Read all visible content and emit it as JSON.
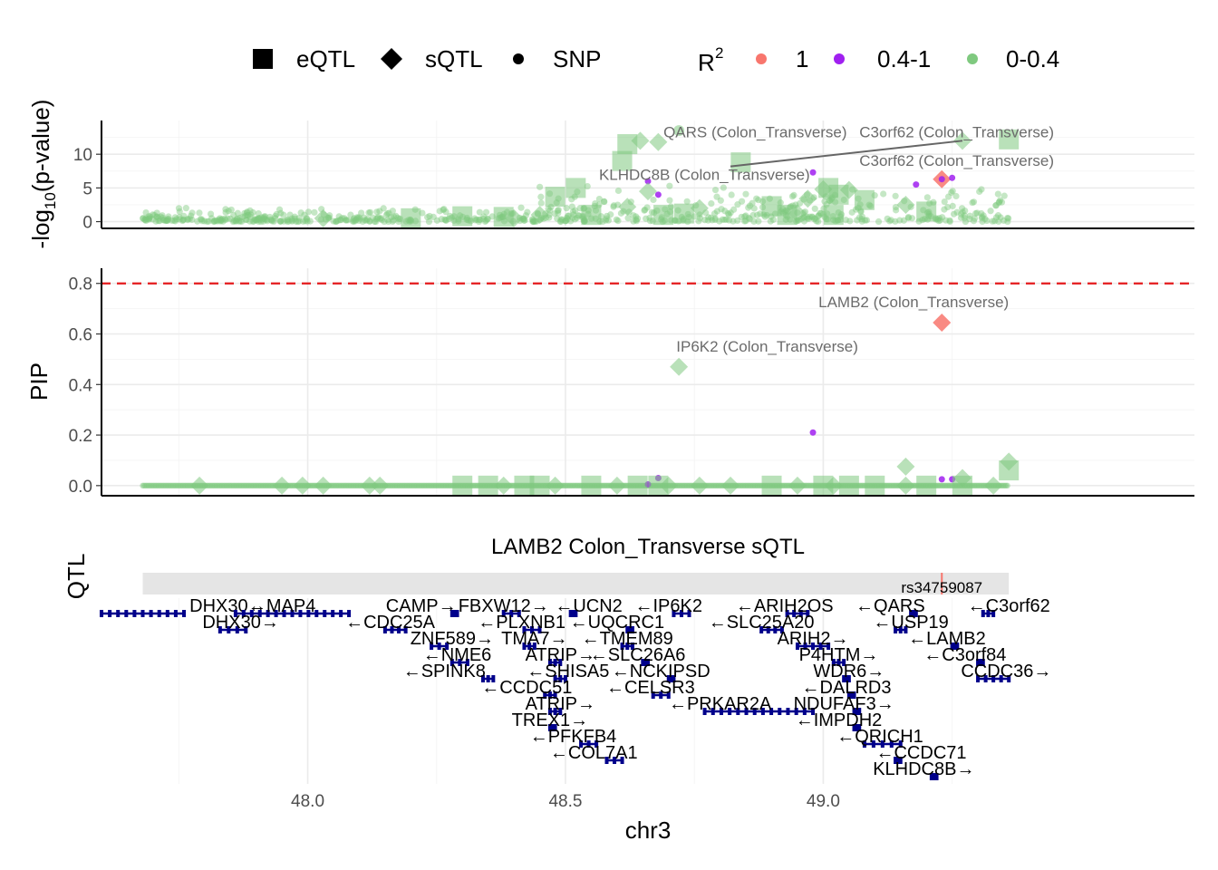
{
  "legend": {
    "shape_items": [
      {
        "label": "eQTL",
        "shape": "square"
      },
      {
        "label": "sQTL",
        "shape": "diamond"
      },
      {
        "label": "SNP",
        "shape": "circle"
      }
    ],
    "color_title": "R",
    "color_title_sup": "2",
    "color_items": [
      {
        "label": "1",
        "color": "#F8766D"
      },
      {
        "label": "0.4-1",
        "color": "#A020F0"
      },
      {
        "label": "0-0.4",
        "color": "#7FC97F"
      }
    ]
  },
  "chart_data": [
    {
      "type": "scatter",
      "panel": "pvalue",
      "ylabel_main": "-log",
      "ylabel_sub": "10",
      "ylabel_rest": "(p-value)",
      "ylim": [
        -1,
        15
      ],
      "yticks": [
        0,
        5,
        10
      ],
      "xlim": [
        47.6,
        49.72
      ],
      "colors": {
        "high": "#F8766D",
        "mid": "#A020F0",
        "low": "#7FC97F"
      },
      "points": [
        {
          "x": 48.62,
          "y": 11.5,
          "shape": "square",
          "r2": "low"
        },
        {
          "x": 48.645,
          "y": 12.0,
          "shape": "diamond",
          "r2": "low"
        },
        {
          "x": 48.68,
          "y": 11.8,
          "shape": "diamond",
          "r2": "low"
        },
        {
          "x": 48.72,
          "y": 13.5,
          "shape": "circle",
          "r2": "low"
        },
        {
          "x": 48.61,
          "y": 9.0,
          "shape": "square",
          "r2": "low"
        },
        {
          "x": 48.84,
          "y": 8.8,
          "shape": "square",
          "r2": "low"
        },
        {
          "x": 49.27,
          "y": 12.0,
          "shape": "diamond",
          "r2": "low"
        },
        {
          "x": 49.36,
          "y": 12.2,
          "shape": "square",
          "r2": "low"
        },
        {
          "x": 49.23,
          "y": 6.3,
          "shape": "diamond",
          "r2": "high"
        },
        {
          "x": 49.23,
          "y": 6.3,
          "shape": "circle",
          "r2": "mid"
        },
        {
          "x": 49.18,
          "y": 5.5,
          "shape": "circle",
          "r2": "mid"
        },
        {
          "x": 49.25,
          "y": 6.5,
          "shape": "circle",
          "r2": "mid"
        },
        {
          "x": 48.98,
          "y": 7.3,
          "shape": "circle",
          "r2": "mid"
        },
        {
          "x": 48.68,
          "y": 4.0,
          "shape": "circle",
          "r2": "mid"
        },
        {
          "x": 48.66,
          "y": 6.0,
          "shape": "circle",
          "r2": "mid"
        },
        {
          "x": 48.48,
          "y": 3.7,
          "shape": "square",
          "r2": "low"
        },
        {
          "x": 48.52,
          "y": 5.0,
          "shape": "square",
          "r2": "low"
        },
        {
          "x": 48.55,
          "y": 1.0,
          "shape": "square",
          "r2": "low"
        },
        {
          "x": 48.45,
          "y": 1.0,
          "shape": "diamond",
          "r2": "low"
        },
        {
          "x": 48.62,
          "y": 2.2,
          "shape": "diamond",
          "r2": "low"
        },
        {
          "x": 48.66,
          "y": 4.5,
          "shape": "diamond",
          "r2": "low"
        },
        {
          "x": 48.69,
          "y": 1.0,
          "shape": "square",
          "r2": "low"
        },
        {
          "x": 48.73,
          "y": 1.2,
          "shape": "square",
          "r2": "low"
        },
        {
          "x": 48.76,
          "y": 2.0,
          "shape": "diamond",
          "r2": "low"
        },
        {
          "x": 48.9,
          "y": 2.3,
          "shape": "square",
          "r2": "low"
        },
        {
          "x": 48.95,
          "y": 1.2,
          "shape": "diamond",
          "r2": "low"
        },
        {
          "x": 48.97,
          "y": 3.4,
          "shape": "diamond",
          "r2": "low"
        },
        {
          "x": 49.0,
          "y": 4.8,
          "shape": "diamond",
          "r2": "low"
        },
        {
          "x": 49.01,
          "y": 5.0,
          "shape": "square",
          "r2": "low"
        },
        {
          "x": 49.03,
          "y": 4.0,
          "shape": "square",
          "r2": "low"
        },
        {
          "x": 49.05,
          "y": 4.7,
          "shape": "diamond",
          "r2": "low"
        },
        {
          "x": 49.08,
          "y": 3.2,
          "shape": "square",
          "r2": "low"
        },
        {
          "x": 49.02,
          "y": 1.0,
          "shape": "square",
          "r2": "low"
        },
        {
          "x": 48.93,
          "y": 1.0,
          "shape": "square",
          "r2": "low"
        },
        {
          "x": 49.16,
          "y": 2.5,
          "shape": "diamond",
          "r2": "low"
        },
        {
          "x": 49.2,
          "y": 1.5,
          "shape": "square",
          "r2": "low"
        },
        {
          "x": 48.2,
          "y": 0.5,
          "shape": "square",
          "r2": "low"
        },
        {
          "x": 48.3,
          "y": 0.8,
          "shape": "square",
          "r2": "low"
        },
        {
          "x": 48.38,
          "y": 0.7,
          "shape": "square",
          "r2": "low"
        },
        {
          "x": 48.4,
          "y": 0.5,
          "shape": "diamond",
          "r2": "low"
        },
        {
          "x": 48.03,
          "y": 0.5,
          "shape": "diamond",
          "r2": "low"
        }
      ],
      "annotations": [
        {
          "text": "QARS (Colon_Transverse)",
          "x": 48.69,
          "y": 12.5,
          "anchor": "start"
        },
        {
          "text": "C3orf62 (Colon_Transverse)",
          "x": 49.07,
          "y": 12.5,
          "anchor": "start"
        },
        {
          "text": "C3orf62 (Colon_Transverse)",
          "x": 49.07,
          "y": 8.3,
          "anchor": "start"
        },
        {
          "text": "KLHDC8B (Colon_Transverse)",
          "x": 48.565,
          "y": 6.2,
          "anchor": "start"
        }
      ],
      "connector": {
        "x1": 48.82,
        "y1": 8.2,
        "x2": 49.27,
        "y2": 12.0
      }
    },
    {
      "type": "scatter",
      "panel": "pip",
      "ylabel": "PIP",
      "ylim": [
        -0.04,
        0.86
      ],
      "yticks": [
        0.0,
        0.2,
        0.4,
        0.6,
        0.8
      ],
      "ytick_labels": [
        "0.0",
        "0.2",
        "0.4",
        "0.6",
        "0.8"
      ],
      "threshold": 0.8,
      "points": [
        {
          "x": 49.23,
          "y": 0.645,
          "shape": "diamond",
          "r2": "high"
        },
        {
          "x": 48.72,
          "y": 0.47,
          "shape": "diamond",
          "r2": "low"
        },
        {
          "x": 48.98,
          "y": 0.21,
          "shape": "circle",
          "r2": "mid"
        },
        {
          "x": 49.36,
          "y": 0.06,
          "shape": "square",
          "r2": "low"
        },
        {
          "x": 49.36,
          "y": 0.095,
          "shape": "diamond",
          "r2": "low"
        },
        {
          "x": 49.16,
          "y": 0.075,
          "shape": "diamond",
          "r2": "low"
        },
        {
          "x": 49.27,
          "y": 0.03,
          "shape": "diamond",
          "r2": "low"
        },
        {
          "x": 49.23,
          "y": 0.025,
          "shape": "circle",
          "r2": "mid"
        },
        {
          "x": 49.25,
          "y": 0.025,
          "shape": "circle",
          "r2": "mid"
        },
        {
          "x": 48.68,
          "y": 0.03,
          "shape": "circle",
          "r2": "mid"
        },
        {
          "x": 48.66,
          "y": 0.005,
          "shape": "circle",
          "r2": "mid"
        },
        {
          "x": 47.79,
          "y": 0.0,
          "shape": "diamond",
          "r2": "low"
        },
        {
          "x": 47.95,
          "y": 0.0,
          "shape": "diamond",
          "r2": "low"
        },
        {
          "x": 47.99,
          "y": 0.0,
          "shape": "diamond",
          "r2": "low"
        },
        {
          "x": 48.03,
          "y": 0.0,
          "shape": "diamond",
          "r2": "low"
        },
        {
          "x": 48.12,
          "y": 0.0,
          "shape": "diamond",
          "r2": "low"
        },
        {
          "x": 48.14,
          "y": 0.0,
          "shape": "diamond",
          "r2": "low"
        },
        {
          "x": 48.3,
          "y": 0.0,
          "shape": "square",
          "r2": "low"
        },
        {
          "x": 48.35,
          "y": 0.0,
          "shape": "square",
          "r2": "low"
        },
        {
          "x": 48.38,
          "y": 0.0,
          "shape": "diamond",
          "r2": "low"
        },
        {
          "x": 48.42,
          "y": 0.0,
          "shape": "square",
          "r2": "low"
        },
        {
          "x": 48.45,
          "y": 0.0,
          "shape": "square",
          "r2": "low"
        },
        {
          "x": 48.48,
          "y": 0.0,
          "shape": "diamond",
          "r2": "low"
        },
        {
          "x": 48.55,
          "y": 0.0,
          "shape": "square",
          "r2": "low"
        },
        {
          "x": 48.6,
          "y": 0.0,
          "shape": "diamond",
          "r2": "low"
        },
        {
          "x": 48.64,
          "y": 0.0,
          "shape": "square",
          "r2": "low"
        },
        {
          "x": 48.68,
          "y": 0.0,
          "shape": "square",
          "r2": "low"
        },
        {
          "x": 48.7,
          "y": 0.0,
          "shape": "diamond",
          "r2": "low"
        },
        {
          "x": 48.76,
          "y": 0.0,
          "shape": "diamond",
          "r2": "low"
        },
        {
          "x": 48.82,
          "y": 0.0,
          "shape": "diamond",
          "r2": "low"
        },
        {
          "x": 48.9,
          "y": 0.0,
          "shape": "square",
          "r2": "low"
        },
        {
          "x": 48.95,
          "y": 0.0,
          "shape": "diamond",
          "r2": "low"
        },
        {
          "x": 49.0,
          "y": 0.0,
          "shape": "square",
          "r2": "low"
        },
        {
          "x": 49.02,
          "y": 0.0,
          "shape": "diamond",
          "r2": "low"
        },
        {
          "x": 49.05,
          "y": 0.0,
          "shape": "square",
          "r2": "low"
        },
        {
          "x": 49.1,
          "y": 0.0,
          "shape": "square",
          "r2": "low"
        },
        {
          "x": 49.16,
          "y": 0.0,
          "shape": "diamond",
          "r2": "low"
        },
        {
          "x": 49.2,
          "y": 0.0,
          "shape": "square",
          "r2": "low"
        },
        {
          "x": 49.27,
          "y": 0.0,
          "shape": "square",
          "r2": "low"
        },
        {
          "x": 49.33,
          "y": 0.0,
          "shape": "diamond",
          "r2": "low"
        }
      ],
      "annotations": [
        {
          "text": "LAMB2 (Colon_Transverse)",
          "x": 49.36,
          "y": 0.705,
          "anchor": "end"
        },
        {
          "text": "IP6K2 (Colon_Transverse)",
          "x": 48.715,
          "y": 0.53,
          "anchor": "start"
        }
      ]
    },
    {
      "type": "gene_track",
      "panel": "genes",
      "title": "LAMB2 Colon_Transverse sQTL",
      "ylabel_fragment": "QTL",
      "region": [
        47.68,
        49.36
      ],
      "marker_x": 49.23,
      "marker_label": "rs34759087",
      "xlabel": "chr3",
      "xticks": [
        48.0,
        48.5,
        49.0
      ],
      "xtick_labels": [
        "48.0",
        "48.5",
        "49.0"
      ],
      "genes": [
        {
          "label": "DHX30→",
          "x1": 47.6,
          "x2": 47.76,
          "row": 0,
          "lx": 47.845
        },
        {
          "label": "←MAP4",
          "x1": 47.86,
          "x2": 48.08,
          "row": 0,
          "lx": 47.95
        },
        {
          "label": "DHX30→",
          "x1": 47.83,
          "x2": 47.88,
          "row": 1,
          "lx": 47.87
        },
        {
          "label": "←CDC25A",
          "x1": 48.15,
          "x2": 48.19,
          "row": 1,
          "lx": 48.16
        },
        {
          "label": "CAMP→",
          "x1": 48.28,
          "x2": 48.29,
          "row": 0,
          "lx": 48.22
        },
        {
          "label": "FBXW12→",
          "x1": 48.38,
          "x2": 48.41,
          "row": 0,
          "lx": 48.38
        },
        {
          "label": "←UCN2",
          "x1": 48.51,
          "x2": 48.52,
          "row": 0,
          "lx": 48.545
        },
        {
          "label": "←IP6K2",
          "x1": 48.71,
          "x2": 48.74,
          "row": 0,
          "lx": 48.7
        },
        {
          "label": "←ARIH2OS",
          "x1": 48.93,
          "x2": 48.97,
          "row": 0,
          "lx": 48.925
        },
        {
          "label": "←QARS",
          "x1": 49.17,
          "x2": 49.18,
          "row": 0,
          "lx": 49.13
        },
        {
          "label": "←C3orf62",
          "x1": 49.31,
          "x2": 49.33,
          "row": 0,
          "lx": 49.36
        },
        {
          "label": "ZNF589→",
          "x1": 48.24,
          "x2": 48.27,
          "row": 2,
          "lx": 48.28
        },
        {
          "label": "←PLXNB1",
          "x1": 48.42,
          "x2": 48.45,
          "row": 1,
          "lx": 48.415
        },
        {
          "label": "←UQCRC1",
          "x1": 48.62,
          "x2": 48.63,
          "row": 1,
          "lx": 48.6
        },
        {
          "label": "←SLC25A20",
          "x1": 48.88,
          "x2": 48.92,
          "row": 1,
          "lx": 48.88
        },
        {
          "label": "←USP19",
          "x1": 49.14,
          "x2": 49.16,
          "row": 1,
          "lx": 49.17
        },
        {
          "label": "←NME6",
          "x1": 48.28,
          "x2": 48.31,
          "row": 3,
          "lx": 48.29
        },
        {
          "label": "TMA7→",
          "x1": 48.42,
          "x2": 48.44,
          "row": 2,
          "lx": 48.44
        },
        {
          "label": "←TMEM89",
          "x1": 48.61,
          "x2": 48.63,
          "row": 2,
          "lx": 48.62
        },
        {
          "label": "ARIH2→",
          "x1": 48.95,
          "x2": 49.01,
          "row": 2,
          "lx": 48.98
        },
        {
          "label": "←LAMB2",
          "x1": 49.25,
          "x2": 49.26,
          "row": 2,
          "lx": 49.24
        },
        {
          "label": "←SPINK8",
          "x1": 48.34,
          "x2": 48.36,
          "row": 4,
          "lx": 48.265
        },
        {
          "label": "ATRIP→",
          "x1": 48.47,
          "x2": 48.49,
          "row": 3,
          "lx": 48.49
        },
        {
          "label": "←SLC26A6",
          "x1": 48.65,
          "x2": 48.66,
          "row": 3,
          "lx": 48.64
        },
        {
          "label": "P4HTM→",
          "x1": 49.02,
          "x2": 49.04,
          "row": 3,
          "lx": 49.03
        },
        {
          "label": "←C3orf84",
          "x1": 49.3,
          "x2": 49.31,
          "row": 3,
          "lx": 49.275
        },
        {
          "label": "←SHISA5",
          "x1": 48.48,
          "x2": 48.5,
          "row": 4,
          "lx": 48.505
        },
        {
          "label": "←NCKIPSD",
          "x1": 48.7,
          "x2": 48.71,
          "row": 4,
          "lx": 48.685
        },
        {
          "label": "WDR6→",
          "x1": 49.04,
          "x2": 49.05,
          "row": 4,
          "lx": 49.05
        },
        {
          "label": "CCDC36→",
          "x1": 49.3,
          "x2": 49.36,
          "row": 4,
          "lx": 49.355
        },
        {
          "label": "←CCDC51",
          "x1": 48.46,
          "x2": 48.48,
          "row": 5,
          "lx": 48.425
        },
        {
          "label": "←CELSR3",
          "x1": 48.67,
          "x2": 48.7,
          "row": 5,
          "lx": 48.665
        },
        {
          "label": "←DALRD3",
          "x1": 49.05,
          "x2": 49.06,
          "row": 5,
          "lx": 49.045
        },
        {
          "label": "ATRIP→",
          "x1": 48.47,
          "x2": 48.49,
          "row": 6,
          "lx": 48.49
        },
        {
          "label": "←PRKAR2A",
          "x1": 48.77,
          "x2": 48.98,
          "row": 6,
          "lx": 48.8
        },
        {
          "label": "NDUFAF3→",
          "x1": 49.06,
          "x2": 49.07,
          "row": 6,
          "lx": 49.04
        },
        {
          "label": "TREX1→",
          "x1": 48.47,
          "x2": 48.48,
          "row": 7,
          "lx": 48.47
        },
        {
          "label": "←IMPDH2",
          "x1": 49.06,
          "x2": 49.07,
          "row": 7,
          "lx": 49.03
        },
        {
          "label": "←PFKFB4",
          "x1": 48.53,
          "x2": 48.56,
          "row": 8,
          "lx": 48.515
        },
        {
          "label": "←QRICH1",
          "x1": 49.08,
          "x2": 49.15,
          "row": 8,
          "lx": 49.11
        },
        {
          "label": "←COL7A1",
          "x1": 48.58,
          "x2": 48.61,
          "row": 9,
          "lx": 48.555
        },
        {
          "label": "←CCDC71",
          "x1": 49.14,
          "x2": 49.15,
          "row": 9,
          "lx": 49.19
        },
        {
          "label": "KLHDC8B→",
          "x1": 49.21,
          "x2": 49.22,
          "row": 10,
          "lx": 49.195
        }
      ]
    }
  ]
}
